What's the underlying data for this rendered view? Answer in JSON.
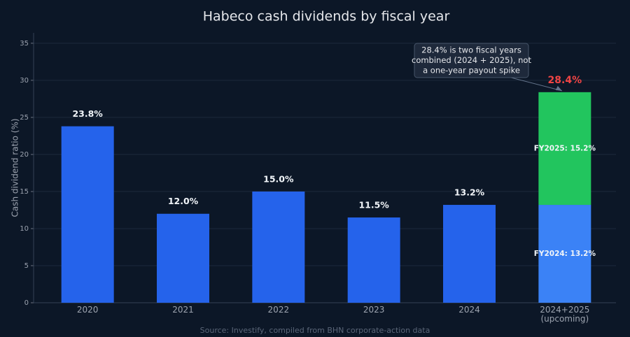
{
  "chart_data": {
    "type": "bar",
    "title": "Habeco cash dividends by fiscal year",
    "y_label": "Cash dividend ratio (%)",
    "source": "Source: Investify, compiled from BHN corporate-action data",
    "categories": [
      "2020",
      "2021",
      "2022",
      "2023",
      "2024",
      "2024+2025\n(upcoming)"
    ],
    "series": [
      {
        "color": "#2563eb",
        "label_position": "above",
        "values": [
          23.8,
          12.0,
          15.0,
          11.5,
          13.2,
          null
        ],
        "value_labels": [
          "23.8%",
          "12.0%",
          "15.0%",
          "11.5%",
          "13.2%",
          null
        ]
      },
      {
        "color": "#3b82f6",
        "label_position": "inside",
        "values": [
          null,
          null,
          null,
          null,
          null,
          13.2
        ],
        "value_labels": [
          null,
          null,
          null,
          null,
          null,
          "FY2024: 13.2%"
        ]
      },
      {
        "color": "#22c55e",
        "label_position": "inside",
        "values": [
          null,
          null,
          null,
          null,
          null,
          15.2
        ],
        "value_labels": [
          null,
          null,
          null,
          null,
          null,
          "FY2025: 15.2%"
        ]
      }
    ],
    "total": {
      "value": 28.4,
      "label": "28.4%",
      "color": "#ef4444"
    },
    "annotation": [
      "28.4% is two fiscal years",
      "combined (2024 + 2025), not",
      "a one-year payout spike"
    ],
    "ylim": [
      0,
      36.4
    ],
    "yticks": [
      0,
      5,
      10,
      15,
      20,
      25,
      30,
      35
    ],
    "grid": true
  }
}
